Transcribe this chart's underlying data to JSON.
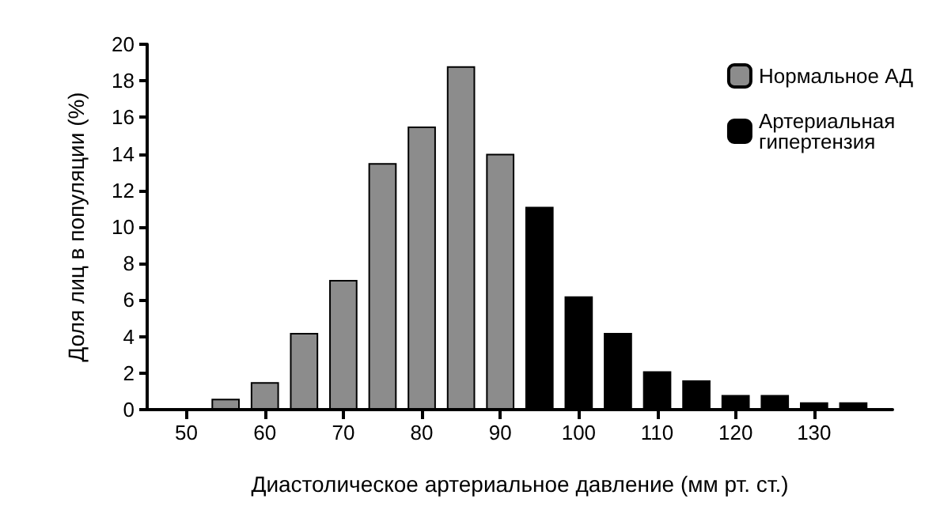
{
  "chart_data": {
    "type": "bar",
    "xlabel": "Диастолическое артериальное давление (мм рт. ст.)",
    "ylabel": "Доля лиц в популяции (%)",
    "xlim": [
      45,
      140
    ],
    "xticks": [
      50,
      60,
      70,
      80,
      90,
      100,
      110,
      120,
      130
    ],
    "ylim": [
      0,
      20
    ],
    "yticks": [
      0,
      2,
      4,
      6,
      8,
      10,
      12,
      14,
      16,
      18,
      20
    ],
    "series": [
      {
        "name": "Нормальное АД",
        "color": "#8c8c8c",
        "x": [
          55,
          60,
          65,
          70,
          75,
          80,
          85,
          90
        ],
        "values": [
          0.6,
          1.5,
          4.2,
          7.1,
          13.5,
          15.5,
          18.8,
          14.0
        ]
      },
      {
        "name": "Артериальная гипертензия",
        "color": "#000000",
        "x": [
          95,
          100,
          105,
          110,
          115,
          120,
          125,
          130,
          135
        ],
        "values": [
          11.1,
          6.2,
          4.2,
          2.1,
          1.6,
          0.8,
          0.8,
          0.4,
          0.4
        ]
      }
    ],
    "legend": "top right",
    "grid": false
  }
}
